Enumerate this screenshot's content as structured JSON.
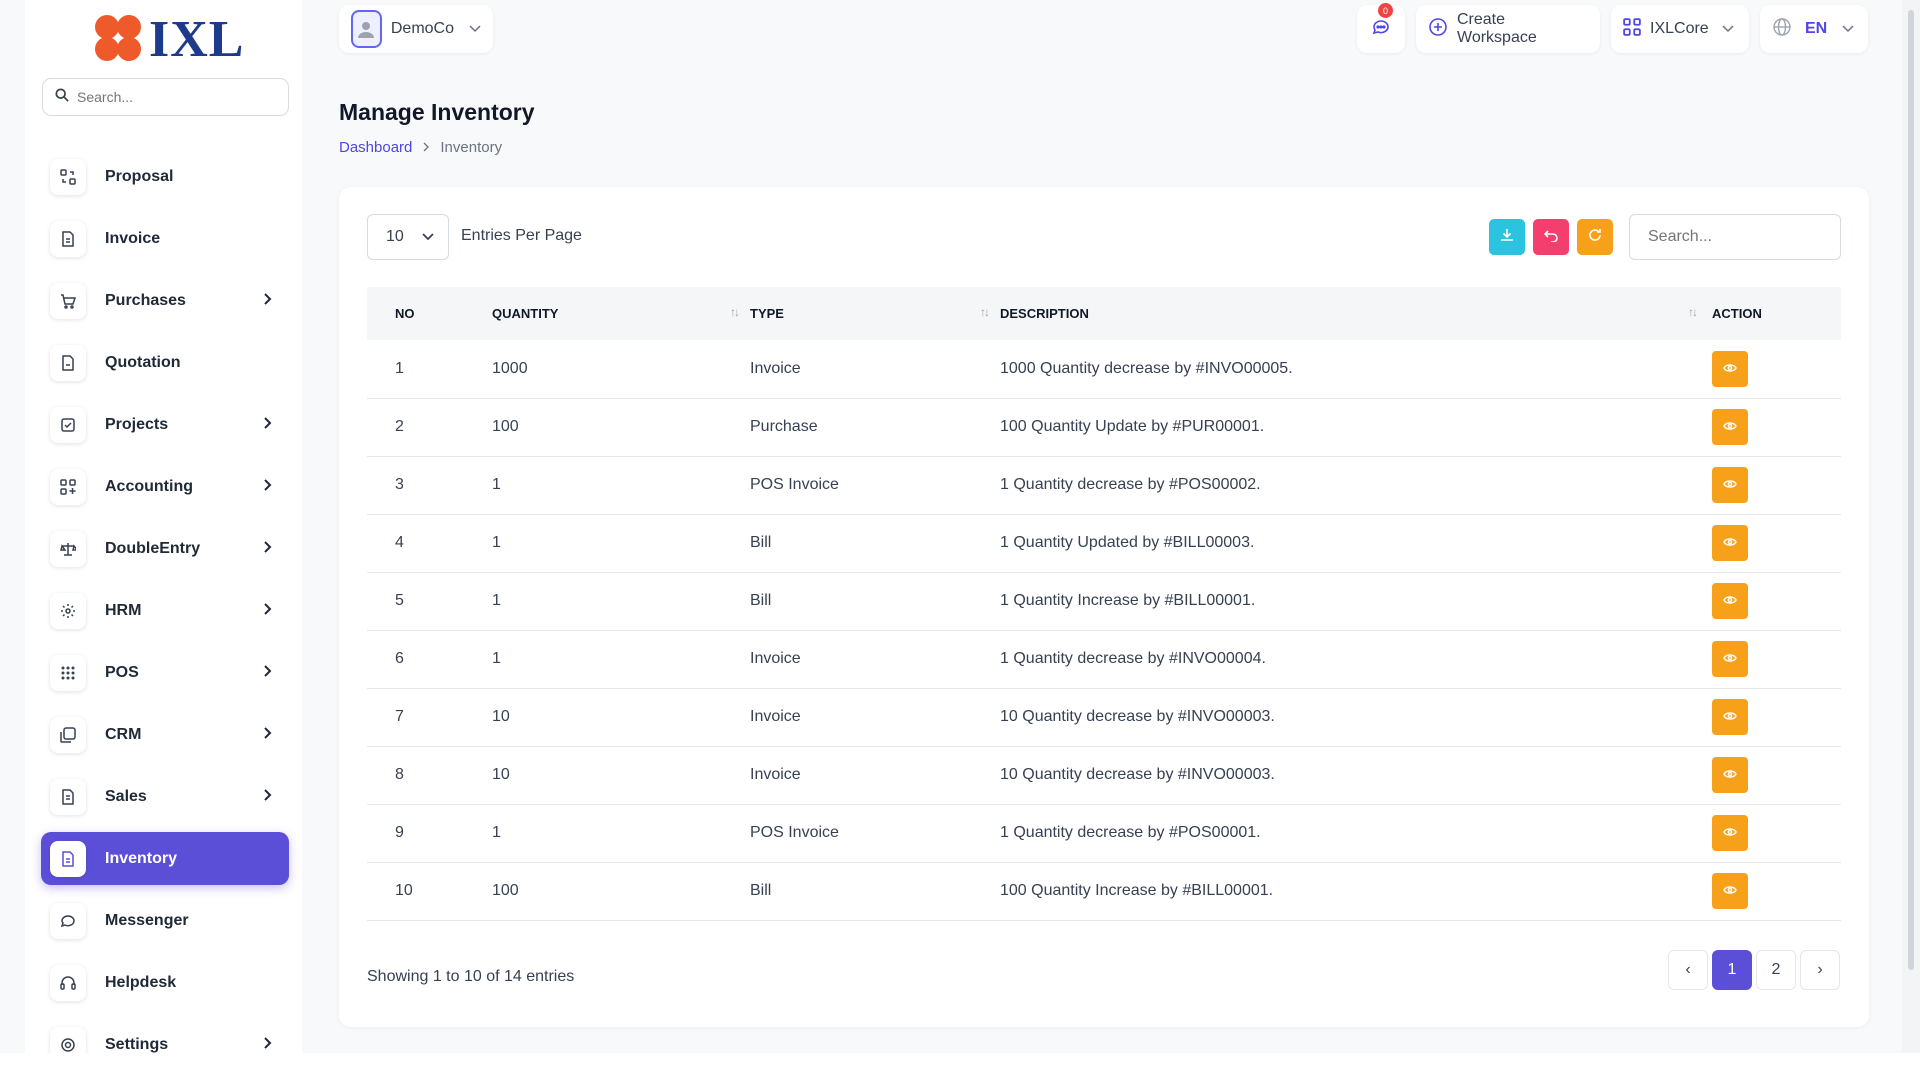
{
  "brand": {
    "name": "IXL",
    "accent": "#5b4fd8",
    "logo_color": "#ef5a2b"
  },
  "sidebar": {
    "search_placeholder": "Search...",
    "items": [
      {
        "label": "Proposal",
        "icon": "proposal-icon",
        "has_children": false
      },
      {
        "label": "Invoice",
        "icon": "invoice-icon",
        "has_children": false
      },
      {
        "label": "Purchases",
        "icon": "cart-icon",
        "has_children": true
      },
      {
        "label": "Quotation",
        "icon": "quotation-icon",
        "has_children": false
      },
      {
        "label": "Projects",
        "icon": "checkbox-icon",
        "has_children": true
      },
      {
        "label": "Accounting",
        "icon": "grid-plus-icon",
        "has_children": true
      },
      {
        "label": "DoubleEntry",
        "icon": "scale-icon",
        "has_children": true
      },
      {
        "label": "HRM",
        "icon": "hrm-icon",
        "has_children": true
      },
      {
        "label": "POS",
        "icon": "dots-grid-icon",
        "has_children": true
      },
      {
        "label": "CRM",
        "icon": "crm-icon",
        "has_children": true
      },
      {
        "label": "Sales",
        "icon": "sales-icon",
        "has_children": true
      },
      {
        "label": "Inventory",
        "icon": "inventory-icon",
        "has_children": false,
        "active": true
      },
      {
        "label": "Messenger",
        "icon": "chat-icon",
        "has_children": false
      },
      {
        "label": "Helpdesk",
        "icon": "headset-icon",
        "has_children": false
      },
      {
        "label": "Settings",
        "icon": "gear-icon",
        "has_children": true
      }
    ]
  },
  "topbar": {
    "workspace": "DemoCo",
    "notification_count": "0",
    "create_workspace": "Create Workspace",
    "app_switcher": "IXLCore",
    "language": "EN"
  },
  "page": {
    "title": "Manage Inventory",
    "breadcrumb": {
      "home": "Dashboard",
      "current": "Inventory"
    }
  },
  "table_controls": {
    "entries_value": "10",
    "entries_label": "Entries Per Page",
    "search_placeholder": "Search...",
    "tool_colors": {
      "download": "#2cc3e0",
      "reset": "#f43f6e",
      "refresh": "#f7a11a"
    }
  },
  "table": {
    "columns": [
      "NO",
      "QUANTITY",
      "TYPE",
      "DESCRIPTION",
      "ACTION"
    ],
    "rows": [
      {
        "no": "1",
        "quantity": "1000",
        "type": "Invoice",
        "description": "1000 Quantity decrease by #INVO00005."
      },
      {
        "no": "2",
        "quantity": "100",
        "type": "Purchase",
        "description": "100 Quantity Update by #PUR00001."
      },
      {
        "no": "3",
        "quantity": "1",
        "type": "POS Invoice",
        "description": "1 Quantity decrease by #POS00002."
      },
      {
        "no": "4",
        "quantity": "1",
        "type": "Bill",
        "description": "1 Quantity Updated by #BILL00003."
      },
      {
        "no": "5",
        "quantity": "1",
        "type": "Bill",
        "description": "1 Quantity Increase by #BILL00001."
      },
      {
        "no": "6",
        "quantity": "1",
        "type": "Invoice",
        "description": "1 Quantity decrease by #INVO00004."
      },
      {
        "no": "7",
        "quantity": "10",
        "type": "Invoice",
        "description": "10 Quantity decrease by #INVO00003."
      },
      {
        "no": "8",
        "quantity": "10",
        "type": "Invoice",
        "description": "10 Quantity decrease by #INVO00003."
      },
      {
        "no": "9",
        "quantity": "1",
        "type": "POS Invoice",
        "description": "1 Quantity decrease by #POS00001."
      },
      {
        "no": "10",
        "quantity": "100",
        "type": "Bill",
        "description": "100 Quantity Increase by #BILL00001."
      }
    ]
  },
  "pagination": {
    "summary": "Showing 1 to 10 of 14 entries",
    "pages": [
      "1",
      "2"
    ],
    "current": "1",
    "prev": "‹",
    "next": "›"
  }
}
